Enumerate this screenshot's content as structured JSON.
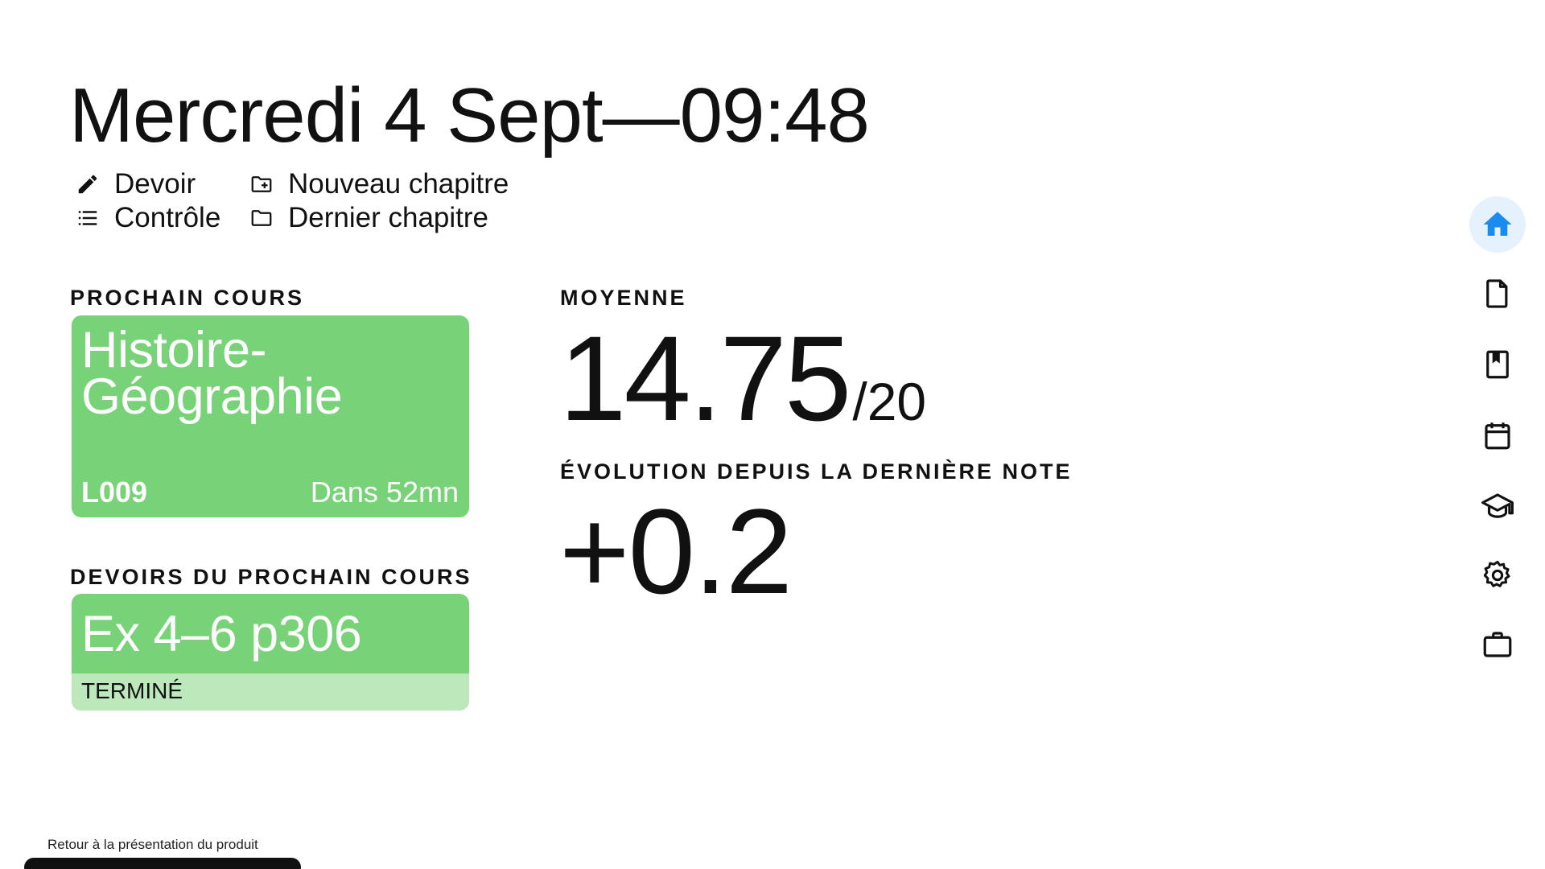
{
  "header": {
    "date": "Mercredi 4 Sept",
    "separator": "—",
    "time": "09:48"
  },
  "quick_actions": {
    "homework": "Devoir",
    "test": "Contrôle",
    "new_chapter": "Nouveau chapitre",
    "last_chapter": "Dernier chapitre"
  },
  "next_course": {
    "label": "PROCHAIN COURS",
    "subject": "Histoire-Géographie",
    "room": "L009",
    "starts_in": "Dans 52mn",
    "color": "#78d278"
  },
  "next_homework": {
    "label": "DEVOIRS DU PROCHAIN COURS",
    "task": "Ex 4–6 p306",
    "status": "TERMINÉ",
    "status_color": "#bce8bc"
  },
  "average": {
    "label": "MOYENNE",
    "value": "14.75",
    "denominator": "/20"
  },
  "evolution": {
    "label": "ÉVOLUTION DEPUIS LA DERNIÈRE NOTE",
    "value": "+0.2"
  },
  "nav": {
    "active": "home",
    "active_color": "#1a8cf0",
    "items": [
      "home-icon",
      "document-icon",
      "bookmark-book-icon",
      "calendar-icon",
      "graduation-cap-icon",
      "settings-gear-icon",
      "briefcase-icon"
    ]
  },
  "footer": {
    "back_link": "Retour à la présentation du produit"
  }
}
